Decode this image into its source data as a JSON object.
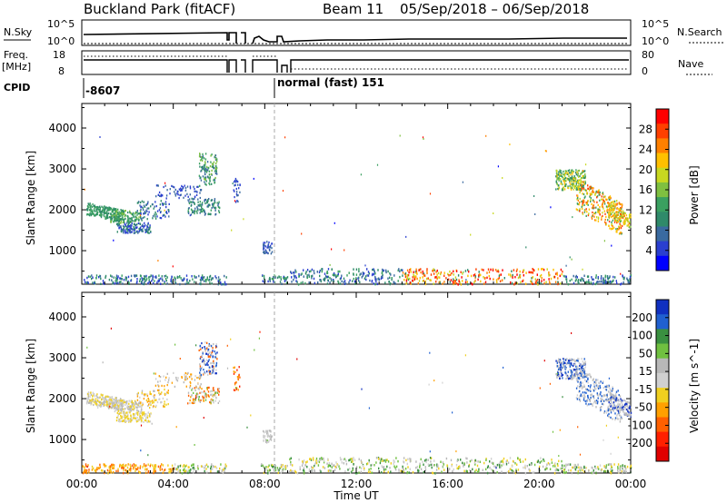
{
  "header": {
    "title": "Buckland Park (fitACF)",
    "beam": "Beam 11",
    "date_range": "05/Sep/2018 – 06/Sep/2018"
  },
  "strip": {
    "nsky_label": "N.Sky",
    "nsearch_label": "N.Search",
    "freq_label": "Freq.",
    "freq_unit": "[MHz]",
    "nave_label": "Nave",
    "cpid_label": "CPID",
    "noise_ticks": [
      "10^5",
      "10^0"
    ],
    "noise_ticks_right": [
      "10^5",
      "10^0"
    ],
    "freq_ticks": [
      "18",
      "8"
    ],
    "nave_ticks": [
      "80",
      "0"
    ],
    "cpid_value": "-8607",
    "cpid_mode": "normal (fast) 151"
  },
  "colors": {
    "power_scale": [
      "#0000ff",
      "#2a3fd0",
      "#3a6aa0",
      "#2f8a6a",
      "#3aa060",
      "#7fc040",
      "#c8d820",
      "#ffc000",
      "#ff8000",
      "#ff4000",
      "#ff0000"
    ],
    "velocity_scale": [
      "#1030c0",
      "#2060d0",
      "#3a9040",
      "#70c040",
      "#b8b8b8",
      "#d0d0d0",
      "#f0d020",
      "#ffa000",
      "#ff6000",
      "#ff2000",
      "#e00000"
    ]
  },
  "chart_data": [
    {
      "type": "heatmap",
      "name": "Power",
      "ylabel": "Slant Range [km]",
      "xlabel": "Time UT",
      "x_ticks": [
        "00:00",
        "04:00",
        "08:00",
        "12:00",
        "16:00",
        "20:00",
        "00:00"
      ],
      "y_ticks": [
        1000,
        2000,
        3000,
        4000
      ],
      "ylim": [
        180,
        4600
      ],
      "xlim_hours": [
        0,
        24
      ],
      "colorbar_label": "Power [dB]",
      "colorbar_ticks": [
        4,
        8,
        12,
        16,
        20,
        24,
        28
      ],
      "colorbar_range": [
        0,
        32
      ]
    },
    {
      "type": "heatmap",
      "name": "Velocity",
      "ylabel": "Slant Range [km]",
      "xlabel": "Time UT",
      "x_ticks": [
        "00:00",
        "04:00",
        "08:00",
        "12:00",
        "16:00",
        "20:00",
        "00:00"
      ],
      "y_ticks": [
        1000,
        2000,
        3000,
        4000
      ],
      "ylim": [
        180,
        4600
      ],
      "xlim_hours": [
        0,
        24
      ],
      "colorbar_label": "Velocity [m s^-1]",
      "colorbar_ticks": [
        200,
        100,
        50,
        15,
        -15,
        -50,
        -100,
        -200
      ]
    }
  ]
}
